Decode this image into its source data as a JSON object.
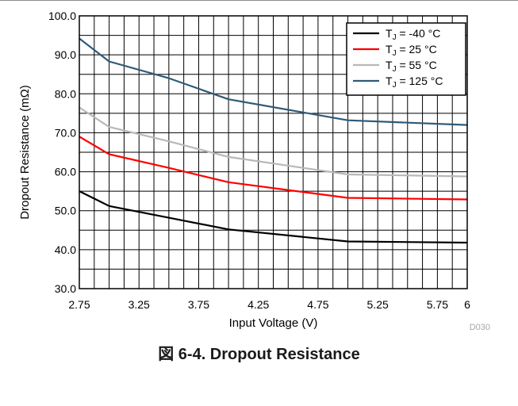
{
  "caption": "図 6-4. Dropout Resistance",
  "figure_id": "D030",
  "chart_data": {
    "type": "line",
    "title": "",
    "xlabel": "Input Voltage (V)",
    "ylabel": "Dropout Resistance (mΩ)",
    "xlim": [
      2.75,
      6
    ],
    "ylim": [
      30,
      100
    ],
    "x_ticks": [
      2.75,
      3.25,
      3.75,
      4.25,
      4.75,
      5.25,
      5.75,
      6
    ],
    "x_tick_labels": [
      "2.75",
      "3.25",
      "3.75",
      "4.25",
      "4.75",
      "5.25",
      "5.75",
      "6"
    ],
    "y_ticks": [
      30,
      40,
      50,
      60,
      70,
      80,
      90,
      100
    ],
    "y_tick_labels": [
      "30.0",
      "40.0",
      "50.0",
      "60.0",
      "70.0",
      "80.0",
      "90.0",
      "100.0"
    ],
    "grid": true,
    "legend_position": "top-right",
    "series": [
      {
        "name": "T_J = -40 °C",
        "name_main": "T",
        "name_sub": "J",
        "name_rest": " = -40 °C",
        "color": "#000000",
        "x": [
          2.75,
          3.0,
          3.5,
          4.0,
          5.0,
          6.0
        ],
        "values": [
          55.0,
          51.2,
          48.2,
          45.2,
          42.1,
          41.8
        ]
      },
      {
        "name": "T_J = 25 °C",
        "name_main": "T",
        "name_sub": "J",
        "name_rest": " = 25 °C",
        "color": "#ff0000",
        "x": [
          2.75,
          3.0,
          3.5,
          4.0,
          5.0,
          6.0
        ],
        "values": [
          69.0,
          64.5,
          61.0,
          57.3,
          53.3,
          52.9
        ]
      },
      {
        "name": "T_J = 55 °C",
        "name_main": "T",
        "name_sub": "J",
        "name_rest": " = 55 °C",
        "color": "#b8b8b8",
        "x": [
          2.75,
          3.0,
          3.5,
          4.0,
          5.0,
          6.0
        ],
        "values": [
          76.5,
          71.5,
          67.8,
          63.8,
          59.3,
          58.8
        ]
      },
      {
        "name": "T_J = 125 °C",
        "name_main": "T",
        "name_sub": "J",
        "name_rest": " = 125 °C",
        "color": "#2e5a78",
        "x": [
          2.75,
          3.0,
          3.5,
          4.0,
          5.0,
          6.0
        ],
        "values": [
          94.2,
          88.3,
          84.0,
          78.6,
          73.2,
          72.0
        ]
      }
    ]
  }
}
